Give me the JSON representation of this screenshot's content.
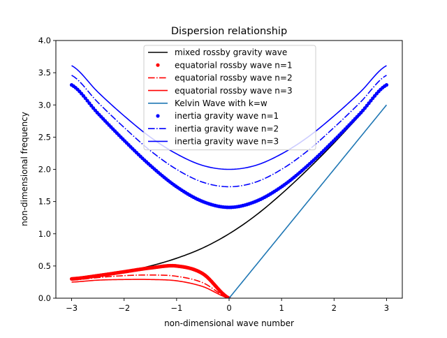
{
  "chart_data": {
    "type": "line",
    "title": "Dispersion relationship",
    "xlabel": "non-dimensional wave number",
    "ylabel": "non-dimensional frequency",
    "xlim": [
      -3.3,
      3.3
    ],
    "ylim": [
      0.0,
      4.0
    ],
    "xticks": [
      -3,
      -2,
      -1,
      0,
      1,
      2,
      3
    ],
    "xtick_labels": [
      "−3",
      "−2",
      "−1",
      "0",
      "1",
      "2",
      "3"
    ],
    "yticks": [
      0.0,
      0.5,
      1.0,
      1.5,
      2.0,
      2.5,
      3.0,
      3.5,
      4.0
    ],
    "ytick_labels": [
      "0.0",
      "0.5",
      "1.0",
      "1.5",
      "2.0",
      "2.5",
      "3.0",
      "3.5",
      "4.0"
    ],
    "grid": false,
    "legend_position": "top-center",
    "colors": {
      "black": "#000000",
      "red": "#ff0000",
      "blue": "#0000ff",
      "kelvin": "#1f77b4"
    },
    "series": [
      {
        "name": "mixed rossby gravity wave",
        "color": "#000000",
        "style": "solid",
        "k": [
          -3,
          -2.5,
          -2,
          -1.5,
          -1,
          -0.5,
          0,
          0.5,
          1,
          1.5,
          2,
          2.5,
          3
        ],
        "w": [
          0.3,
          0.35,
          0.41,
          0.5,
          0.62,
          0.78,
          1.0,
          1.28,
          1.62,
          2.0,
          2.41,
          2.85,
          3.3
        ]
      },
      {
        "name": "equatorial rossby wave n=1",
        "color": "#ff0000",
        "style": "dots",
        "k": [
          -3,
          -2.5,
          -2,
          -1.5,
          -1,
          -0.5,
          0
        ],
        "w": [
          0.3,
          0.35,
          0.41,
          0.47,
          0.5,
          0.38,
          0.0
        ]
      },
      {
        "name": "equatorial rossby wave n=2",
        "color": "#ff0000",
        "style": "dashdot",
        "k": [
          -3,
          -2.5,
          -2,
          -1.5,
          -1,
          -0.5,
          0
        ],
        "w": [
          0.28,
          0.32,
          0.35,
          0.36,
          0.34,
          0.24,
          0.0
        ]
      },
      {
        "name": "equatorial rossby wave n=3",
        "color": "#ff0000",
        "style": "solid",
        "k": [
          -3,
          -2.5,
          -2,
          -1.5,
          -1,
          -0.5,
          0
        ],
        "w": [
          0.25,
          0.28,
          0.29,
          0.29,
          0.27,
          0.18,
          0.0
        ]
      },
      {
        "name": "Kelvin Wave with k=w",
        "color": "#1f77b4",
        "style": "solid",
        "k": [
          0,
          3
        ],
        "w": [
          0.0,
          3.0
        ]
      },
      {
        "name": "inertia gravity wave n=1",
        "color": "#0000ff",
        "style": "dots",
        "k": [
          -3,
          -2.5,
          -2,
          -1.5,
          -1,
          -0.5,
          0,
          0.5,
          1,
          1.5,
          2,
          2.5,
          3
        ],
        "w": [
          3.31,
          2.87,
          2.45,
          2.06,
          1.73,
          1.5,
          1.41,
          1.5,
          1.73,
          2.06,
          2.45,
          2.87,
          3.31
        ]
      },
      {
        "name": "inertia gravity wave n=2",
        "color": "#0000ff",
        "style": "dashdot",
        "k": [
          -3,
          -2.5,
          -2,
          -1.5,
          -1,
          -0.5,
          0,
          0.5,
          1,
          1.5,
          2,
          2.5,
          3
        ],
        "w": [
          3.46,
          3.04,
          2.65,
          2.29,
          2.0,
          1.8,
          1.73,
          1.8,
          2.0,
          2.29,
          2.65,
          3.04,
          3.46
        ]
      },
      {
        "name": "inertia gravity wave n=3",
        "color": "#0000ff",
        "style": "solid",
        "k": [
          -3,
          -2.5,
          -2,
          -1.5,
          -1,
          -0.5,
          0,
          0.5,
          1,
          1.5,
          2,
          2.5,
          3
        ],
        "w": [
          3.61,
          3.2,
          2.83,
          2.5,
          2.24,
          2.06,
          2.0,
          2.06,
          2.24,
          2.5,
          2.83,
          3.2,
          3.61
        ]
      }
    ]
  }
}
